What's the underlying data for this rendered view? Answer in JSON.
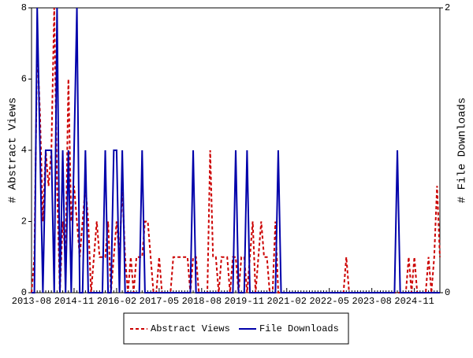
{
  "chart_data": {
    "type": "line",
    "ylabel": "# Abstract Views",
    "y2label": "# File Downloads",
    "categories": [
      "2013-08",
      null,
      null,
      null,
      null,
      null,
      null,
      null,
      null,
      null,
      null,
      null,
      null,
      null,
      null,
      "2014-11",
      null,
      null,
      null,
      null,
      null,
      null,
      null,
      null,
      null,
      null,
      null,
      null,
      null,
      null,
      "2016-02",
      null,
      null,
      null,
      null,
      null,
      null,
      null,
      null,
      null,
      null,
      null,
      null,
      null,
      null,
      "2017-05",
      null,
      null,
      null,
      null,
      null,
      null,
      null,
      null,
      null,
      null,
      null,
      null,
      null,
      null,
      "2018-08",
      null,
      null,
      null,
      null,
      null,
      null,
      null,
      null,
      null,
      null,
      null,
      null,
      null,
      null,
      "2019-11",
      null,
      null,
      null,
      null,
      null,
      null,
      null,
      null,
      null,
      null,
      null,
      null,
      null,
      null,
      "2021-02",
      null,
      null,
      null,
      null,
      null,
      null,
      null,
      null,
      null,
      null,
      null,
      null,
      null,
      null,
      "2022-05",
      null,
      null,
      null,
      null,
      null,
      null,
      null,
      null,
      null,
      null,
      null,
      null,
      null,
      null,
      "2023-08",
      null,
      null,
      null,
      null,
      null,
      null,
      null,
      null,
      null,
      null,
      null,
      null,
      null,
      null,
      "2024-11",
      null,
      null,
      null,
      null,
      null,
      null,
      null,
      null,
      null
    ],
    "series": [
      {
        "name": "Abstract Views",
        "color": "#cc0000",
        "dash": true,
        "axis": "y",
        "values": [
          0,
          1,
          7,
          5,
          2,
          4,
          3,
          4,
          8,
          3,
          0,
          2,
          1,
          6,
          2,
          3,
          2,
          1,
          2,
          3,
          2,
          0,
          1,
          2,
          1,
          1,
          1,
          2,
          0,
          1,
          2,
          1,
          3,
          1,
          0,
          1,
          0,
          1,
          1,
          1,
          2,
          2,
          1,
          0,
          0,
          1,
          0,
          0,
          0,
          0,
          1,
          1,
          1,
          1,
          1,
          1,
          0,
          1,
          1,
          0,
          0,
          0,
          0,
          4,
          1,
          1,
          0,
          1,
          1,
          1,
          0,
          1,
          1,
          0,
          1,
          1,
          0,
          1,
          2,
          0,
          1,
          2,
          1,
          1,
          0,
          0,
          2,
          0,
          0,
          0,
          0,
          0,
          0,
          0,
          0,
          0,
          0,
          0,
          0,
          0,
          0,
          0,
          0,
          0,
          0,
          0,
          0,
          0,
          0,
          0,
          0,
          1,
          0,
          0,
          0,
          0,
          0,
          0,
          0,
          0,
          0,
          0,
          0,
          0,
          0,
          0,
          0,
          0,
          0,
          0,
          0,
          0,
          0,
          1,
          0,
          1,
          0,
          0,
          0,
          0,
          1,
          0,
          1,
          3,
          1
        ]
      },
      {
        "name": "File Downloads",
        "color": "#0000aa",
        "dash": false,
        "axis": "y2",
        "values": [
          0,
          0,
          2,
          1,
          0,
          1,
          1,
          1,
          0,
          2,
          0,
          1,
          0,
          1,
          0,
          1,
          2,
          0,
          0,
          1,
          0,
          0,
          0,
          0,
          0,
          0,
          1,
          0,
          0,
          1,
          1,
          0,
          1,
          0,
          0,
          0,
          0,
          0,
          0,
          1,
          0,
          0,
          0,
          0,
          0,
          0,
          0,
          0,
          0,
          0,
          0,
          0,
          0,
          0,
          0,
          0,
          0,
          1,
          0,
          0,
          0,
          0,
          0,
          0,
          0,
          0,
          0,
          0,
          0,
          0,
          0,
          0,
          1,
          0,
          0,
          0,
          1,
          0,
          0,
          0,
          0,
          0,
          0,
          0,
          0,
          0,
          0,
          1,
          0,
          0,
          0,
          0,
          0,
          0,
          0,
          0,
          0,
          0,
          0,
          0,
          0,
          0,
          0,
          0,
          0,
          0,
          0,
          0,
          0,
          0,
          0,
          0,
          0,
          0,
          0,
          0,
          0,
          0,
          0,
          0,
          0,
          0,
          0,
          0,
          0,
          0,
          0,
          0,
          0,
          1,
          0,
          0,
          0,
          0,
          0,
          0,
          0,
          0,
          0,
          0,
          0,
          0,
          0,
          0,
          0
        ]
      }
    ],
    "ylim": [
      0,
      8
    ],
    "yticks": [
      0,
      2,
      4,
      6,
      8
    ],
    "y2lim": [
      0,
      2
    ],
    "y2ticks": [
      0,
      2
    ]
  }
}
